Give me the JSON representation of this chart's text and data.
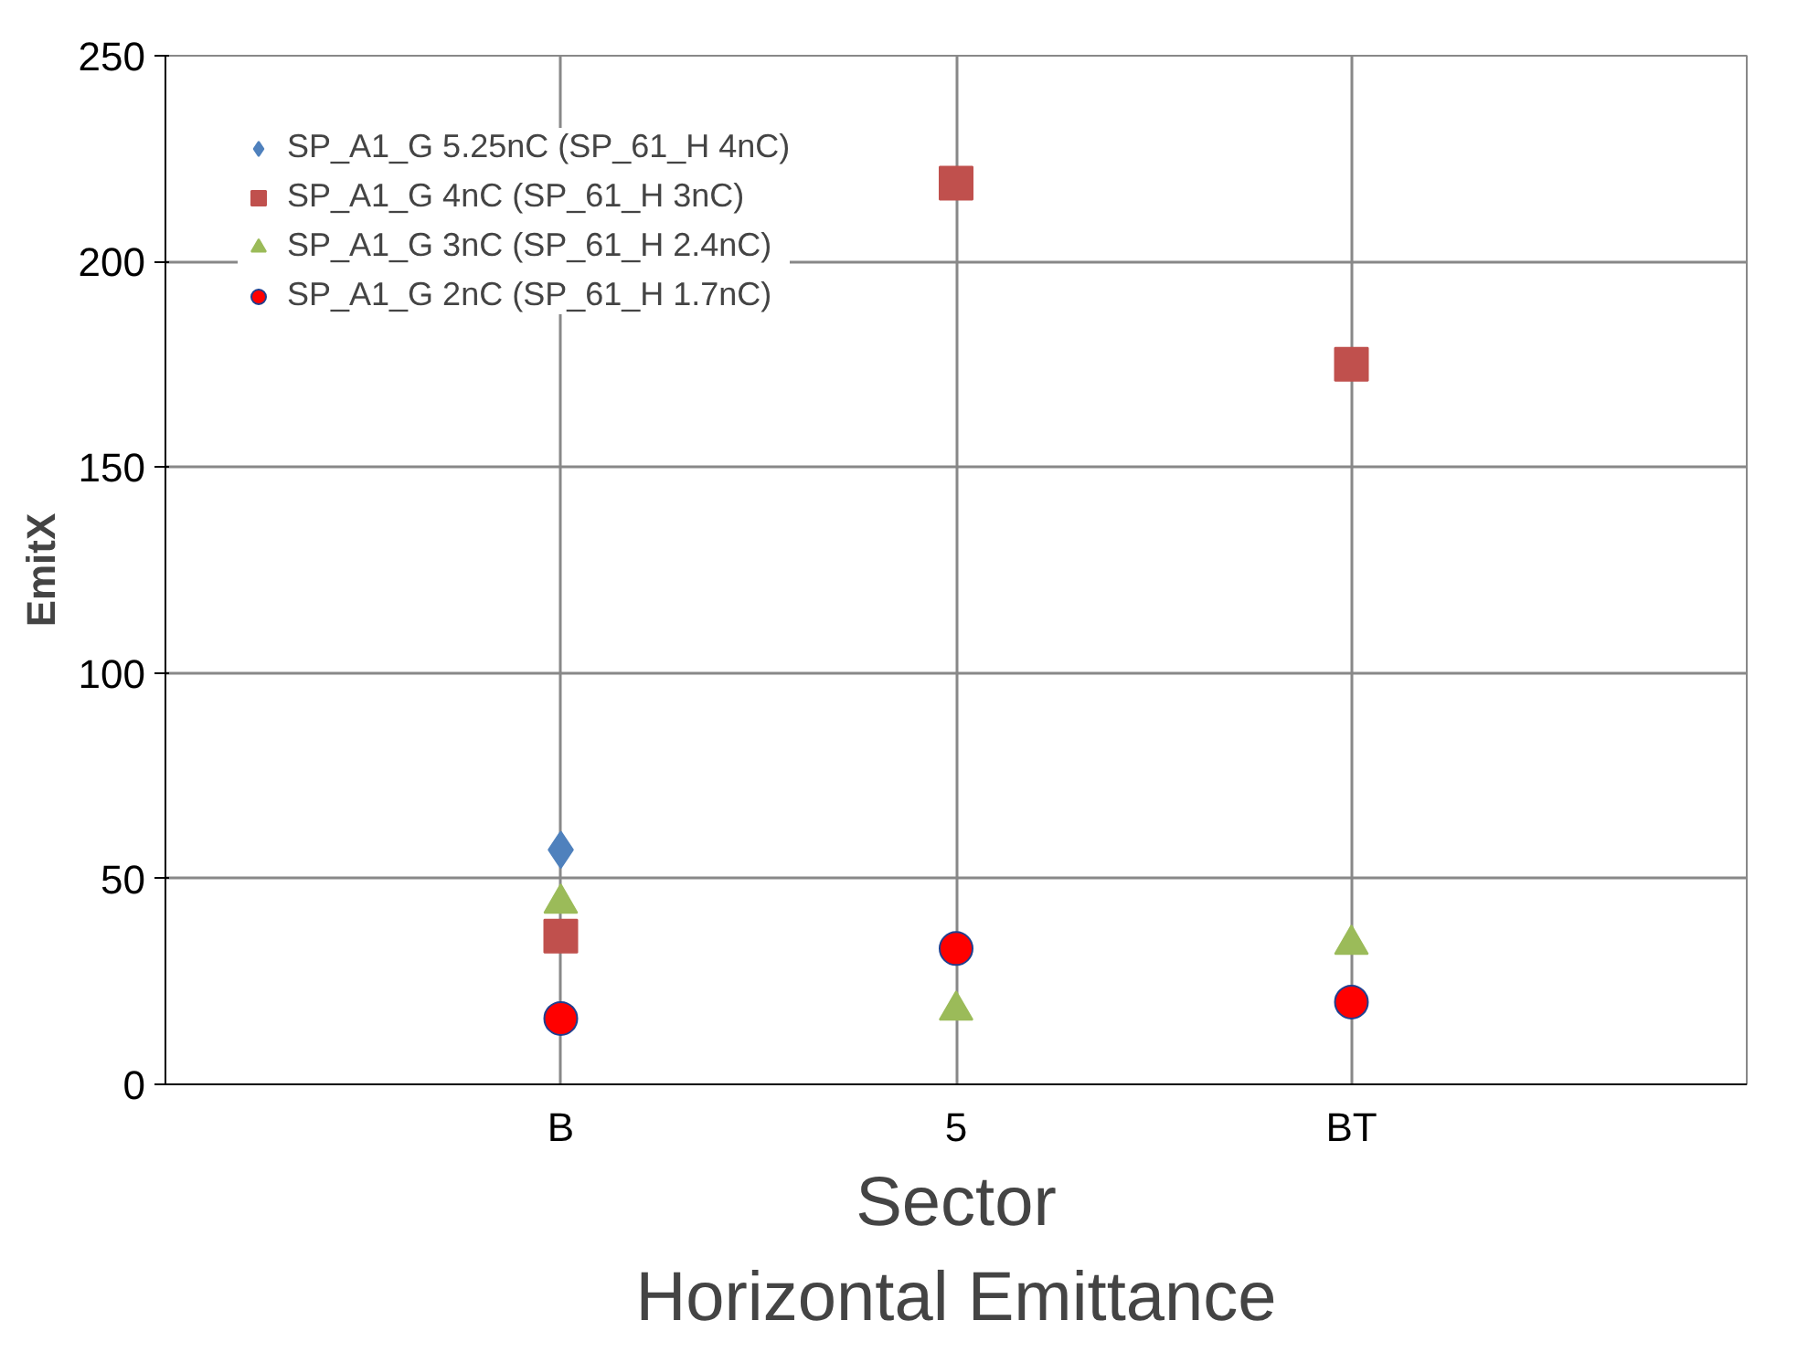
{
  "chart_data": {
    "type": "scatter",
    "title": "Horizontal Emittance",
    "xlabel": "Sector",
    "ylabel": "EmitX",
    "categories": [
      "B",
      "5",
      "BT"
    ],
    "series": [
      {
        "name": "SP_A1_G 5.25nC (SP_61_H 4nC)",
        "color": "#4f81bd",
        "marker": "diamond",
        "values": [
          57,
          null,
          null
        ]
      },
      {
        "name": "SP_A1_G 4nC (SP_61_H 3nC)",
        "color": "#c0504d",
        "marker": "square",
        "values": [
          36,
          219,
          175
        ]
      },
      {
        "name": "SP_A1_G 3nC (SP_61_H 2.4nC)",
        "color": "#9bbb59",
        "marker": "triangle",
        "values": [
          44,
          18,
          34
        ]
      },
      {
        "name": "SP_A1_G 2nC (SP_61_H 1.7nC)",
        "color": "#ff0000",
        "marker": "circle",
        "values": [
          16,
          33,
          20
        ]
      }
    ],
    "ylim": [
      0,
      250
    ],
    "yticks": [
      0,
      50,
      100,
      150,
      200,
      250
    ],
    "grid": true,
    "legend": "top left"
  }
}
